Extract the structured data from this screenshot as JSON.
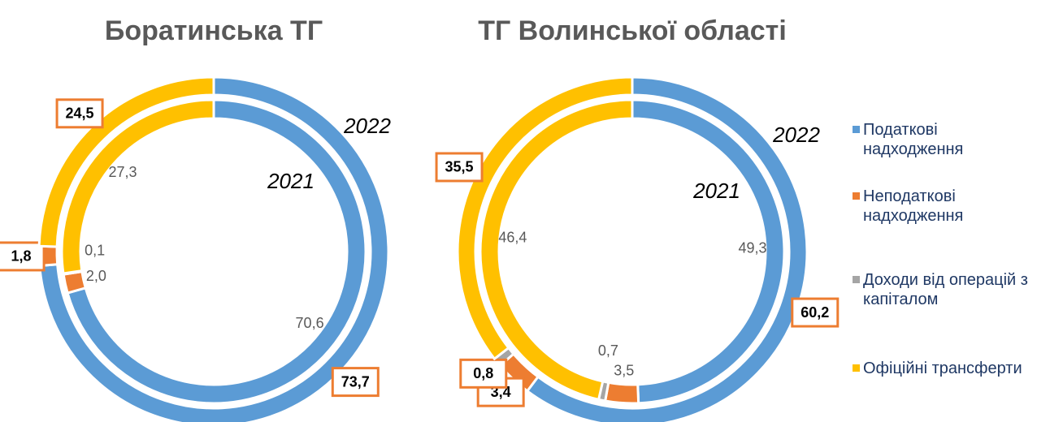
{
  "chart_data": [
    {
      "type": "doughnut",
      "title": "Боратинська ТГ",
      "colors": [
        "#5b9bd5",
        "#ed7d31",
        "#a5a5a5",
        "#ffc000"
      ],
      "rings": [
        {
          "name": "2022",
          "values": [
            73.7,
            1.8,
            0,
            24.5
          ],
          "value_labels": [
            "73,7",
            "1,8",
            null,
            "24,5"
          ]
        },
        {
          "name": "2021",
          "values": [
            70.6,
            2.0,
            0.1,
            27.3
          ],
          "value_labels": [
            "70,6",
            "2,0",
            "0,1",
            "27,3"
          ]
        }
      ]
    },
    {
      "type": "doughnut",
      "title": "ТГ Волинської області",
      "categories": [
        "Податкові надходження",
        "Неподаткові надходження",
        "Доходи від операцій з капіталом",
        "Офіційні трансферти"
      ],
      "colors": [
        "#5b9bd5",
        "#ed7d31",
        "#a5a5a5",
        "#ffc000"
      ],
      "legend": "right",
      "rings": [
        {
          "name": "2022",
          "values": [
            60.2,
            3.4,
            0.8,
            35.5
          ],
          "value_labels": [
            "60,2",
            "3,4",
            "0,8",
            "35,5"
          ]
        },
        {
          "name": "2021",
          "values": [
            49.3,
            3.5,
            0.7,
            46.4
          ],
          "value_labels": [
            "49,3",
            "3,5",
            "0,7",
            "46,4"
          ]
        }
      ]
    }
  ]
}
